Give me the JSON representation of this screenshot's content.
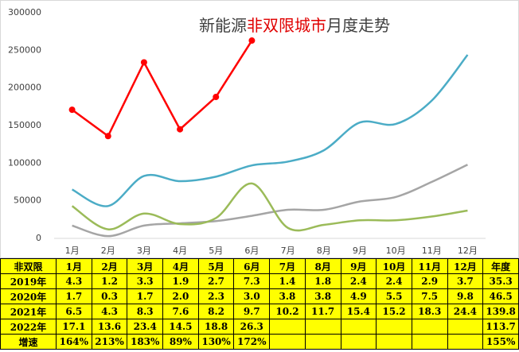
{
  "chart_data": {
    "type": "line",
    "title_parts": [
      "新能源",
      "非双限城市",
      "月度走势"
    ],
    "title_colors": [
      "#404040",
      "#e00000",
      "#404040"
    ],
    "categories": [
      "1月",
      "2月",
      "3月",
      "4月",
      "5月",
      "6月",
      "7月",
      "8月",
      "9月",
      "10月",
      "11月",
      "12月"
    ],
    "ylim": [
      0,
      300000
    ],
    "yticks": [
      0,
      50000,
      100000,
      150000,
      200000,
      250000,
      300000
    ],
    "grid": false,
    "series": [
      {
        "color": "#a5a5a5",
        "smooth": true,
        "values": [
          17000,
          3000,
          17000,
          20000,
          23000,
          30000,
          38000,
          38000,
          49000,
          55000,
          75000,
          98000
        ]
      },
      {
        "color": "#9bbb59",
        "smooth": true,
        "values": [
          43000,
          12000,
          33000,
          19000,
          27000,
          73000,
          14000,
          18000,
          24000,
          24000,
          29000,
          37000
        ]
      },
      {
        "color": "#4bacc6",
        "smooth": true,
        "values": [
          65000,
          43000,
          83000,
          76000,
          82000,
          97000,
          102000,
          117000,
          154000,
          152000,
          183000,
          244000
        ]
      },
      {
        "color": "#ff0000",
        "smooth": false,
        "markers": true,
        "values": [
          171000,
          136000,
          234000,
          145000,
          188000,
          263000,
          null,
          null,
          null,
          null,
          null,
          null
        ]
      }
    ]
  },
  "table": {
    "header": [
      "非双限",
      "1月",
      "2月",
      "3月",
      "4月",
      "5月",
      "6月",
      "7月",
      "8月",
      "9月",
      "10月",
      "11月",
      "12月",
      "年度"
    ],
    "rows": [
      [
        "2019年",
        "4.3",
        "1.2",
        "3.3",
        "1.9",
        "2.7",
        "7.3",
        "1.4",
        "1.8",
        "2.4",
        "2.4",
        "2.9",
        "3.7",
        "35.3"
      ],
      [
        "2020年",
        "1.7",
        "0.3",
        "1.7",
        "2.0",
        "2.3",
        "3.0",
        "3.8",
        "3.8",
        "4.9",
        "5.5",
        "7.5",
        "9.8",
        "46.5"
      ],
      [
        "2021年",
        "6.5",
        "4.3",
        "8.3",
        "7.6",
        "8.2",
        "9.7",
        "10.2",
        "11.7",
        "15.4",
        "15.2",
        "18.3",
        "24.4",
        "139.8"
      ],
      [
        "2022年",
        "17.1",
        "13.6",
        "23.4",
        "14.5",
        "18.8",
        "26.3",
        null,
        null,
        null,
        null,
        null,
        null,
        "113.7"
      ],
      [
        "增速",
        "164%",
        "213%",
        "183%",
        "89%",
        "130%",
        "172%",
        null,
        null,
        null,
        null,
        null,
        null,
        "155%"
      ]
    ]
  }
}
